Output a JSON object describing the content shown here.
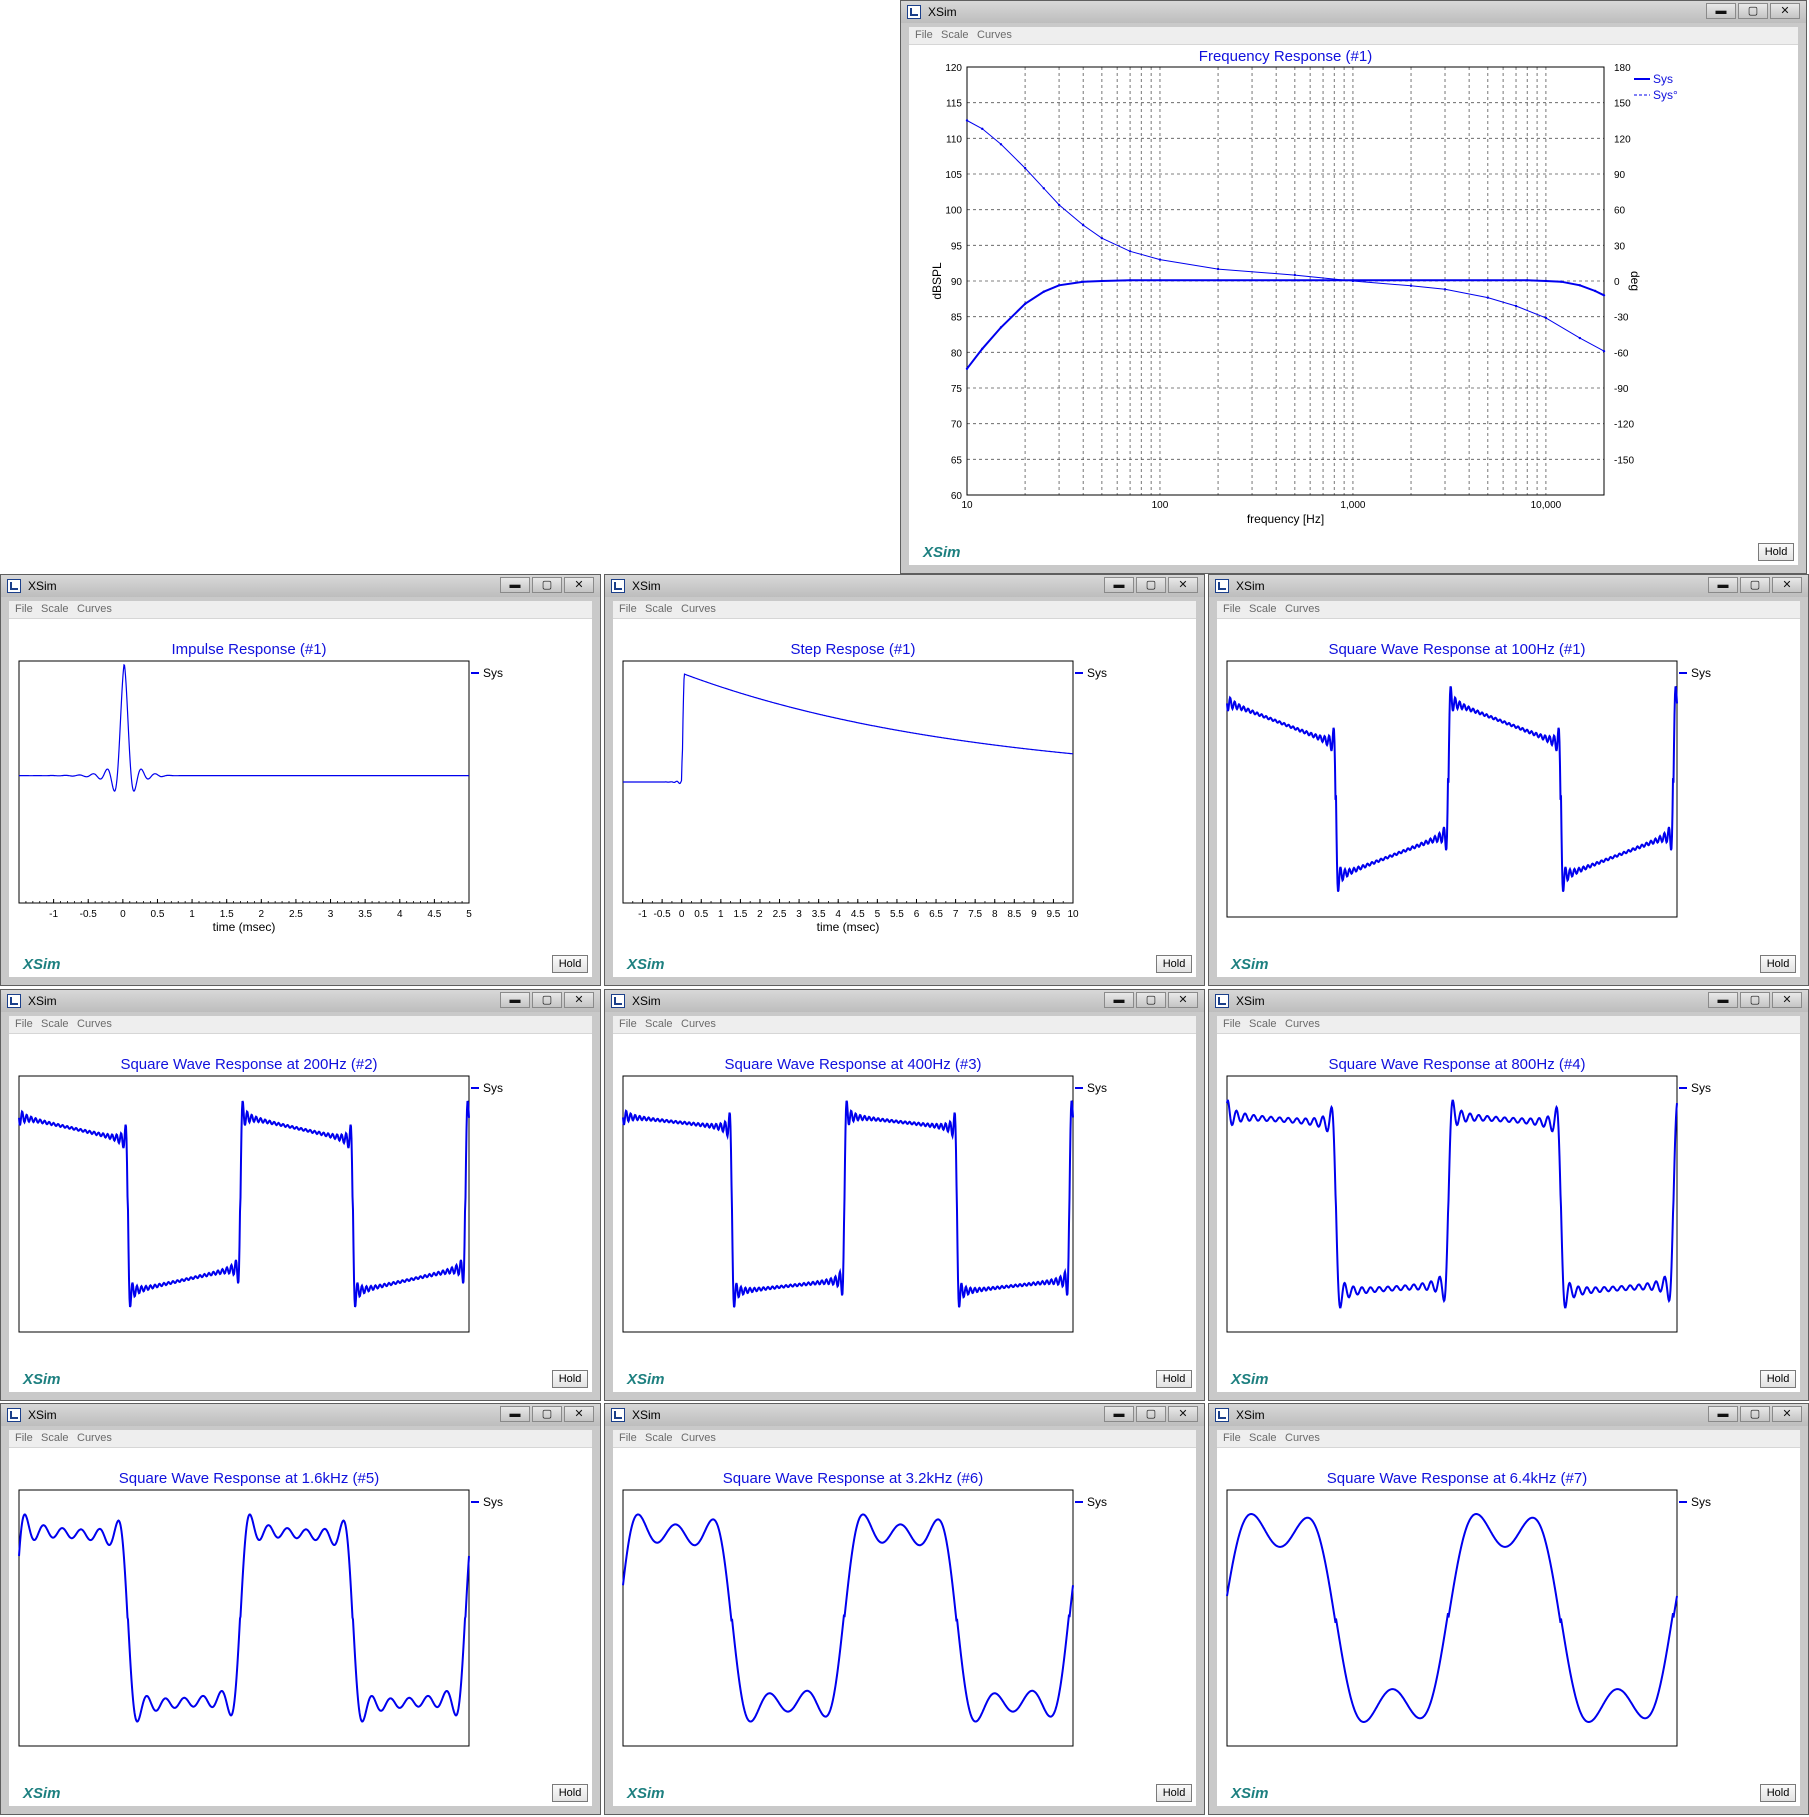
{
  "app_title": "XSim",
  "menu": [
    "File",
    "Scale",
    "Curves"
  ],
  "hold_label": "Hold",
  "brand_label": "XSim",
  "window_buttons": {
    "minimize": "▬",
    "maximize": "▢",
    "close": "✕"
  },
  "colors": {
    "curve": "#0000ee",
    "title": "#1010dd",
    "brand": "#1e8080",
    "grid": "#555555"
  },
  "freq_window": {
    "chart_data": {
      "type": "line",
      "title": "Frequency Response (#1)",
      "xlabel": "frequency [Hz]",
      "ylabel": "dBSPL",
      "y2label": "deg",
      "x_scale": "log",
      "xlim": [
        10,
        20000
      ],
      "ylim": [
        60,
        120
      ],
      "y2lim": [
        -180,
        180
      ],
      "x_tick_labels": [
        {
          "value": 10,
          "label": "10"
        },
        {
          "value": 100,
          "label": "100"
        },
        {
          "value": 1000,
          "label": "1,000"
        },
        {
          "value": 10000,
          "label": "10,000"
        }
      ],
      "y_ticks": [
        60,
        65,
        70,
        75,
        80,
        85,
        90,
        95,
        100,
        105,
        110,
        115,
        120
      ],
      "y2_ticks": [
        -150,
        -120,
        -90,
        -60,
        -30,
        0,
        30,
        60,
        90,
        120,
        150,
        180
      ],
      "grid": true,
      "legend_position": "top-right",
      "series": [
        {
          "name": "Sys",
          "axis": "left",
          "style": "solid",
          "x": [
            10,
            12,
            15,
            20,
            25,
            30,
            40,
            50,
            70,
            100,
            200,
            500,
            1000,
            2000,
            5000,
            8000,
            10000,
            12000,
            15000,
            18000,
            20000
          ],
          "y": [
            77.7,
            80.5,
            83.5,
            86.8,
            88.5,
            89.4,
            89.9,
            90.0,
            90.1,
            90.1,
            90.1,
            90.1,
            90.1,
            90.1,
            90.1,
            90.1,
            90.0,
            89.9,
            89.4,
            88.6,
            88.0
          ]
        },
        {
          "name": "Sys°",
          "axis": "right",
          "style": "dashed",
          "x": [
            10,
            12,
            15,
            20,
            25,
            30,
            40,
            50,
            70,
            100,
            200,
            500,
            1000,
            2000,
            3000,
            5000,
            7000,
            10000,
            15000,
            20000
          ],
          "y": [
            135,
            128,
            115,
            95,
            78,
            64,
            47,
            36,
            25,
            18,
            10,
            5,
            0,
            -4,
            -7,
            -14,
            -21,
            -31,
            -48,
            -59
          ]
        }
      ]
    }
  },
  "impulse_window": {
    "chart_data": {
      "type": "line",
      "title": "Impulse Response (#1)",
      "xlabel": "time (msec)",
      "xlim": [
        -1.5,
        5
      ],
      "x_ticks": [
        -1,
        -0.5,
        0,
        0.5,
        1,
        1.5,
        2,
        2.5,
        3,
        3.5,
        4,
        4.5,
        5
      ],
      "ylim": [
        -1.0,
        0.9
      ],
      "legend_position": "top-right",
      "series": [
        {
          "name": "Sys"
        }
      ]
    }
  },
  "step_window": {
    "chart_data": {
      "type": "line",
      "title": "Step Respose (#1)",
      "xlabel": "time (msec)",
      "xlim": [
        -1.5,
        10
      ],
      "x_ticks": [
        -1,
        -0.5,
        0,
        0.5,
        1,
        1.5,
        2,
        2.5,
        3,
        3.5,
        4,
        4.5,
        5,
        5.5,
        6,
        6.5,
        7,
        7.5,
        8,
        8.5,
        9,
        9.5,
        10
      ],
      "ylim": [
        -1.0,
        1.0
      ],
      "legend_position": "top-right",
      "series": [
        {
          "name": "Sys"
        }
      ]
    }
  },
  "square_windows": [
    {
      "chart_data": {
        "type": "line",
        "title": "Square Wave Response at 100Hz (#1)",
        "frequency_hz": 100,
        "cycles_shown": 2,
        "legend_position": "top-right",
        "series": [
          {
            "name": "Sys"
          }
        ]
      }
    },
    {
      "chart_data": {
        "type": "line",
        "title": "Square Wave Response at 200Hz (#2)",
        "frequency_hz": 200,
        "cycles_shown": 2,
        "legend_position": "top-right",
        "series": [
          {
            "name": "Sys"
          }
        ]
      }
    },
    {
      "chart_data": {
        "type": "line",
        "title": "Square Wave Response at 400Hz (#3)",
        "frequency_hz": 400,
        "cycles_shown": 2,
        "legend_position": "top-right",
        "series": [
          {
            "name": "Sys"
          }
        ]
      }
    },
    {
      "chart_data": {
        "type": "line",
        "title": "Square Wave Response at 800Hz (#4)",
        "frequency_hz": 800,
        "cycles_shown": 2,
        "legend_position": "top-right",
        "series": [
          {
            "name": "Sys"
          }
        ]
      }
    },
    {
      "chart_data": {
        "type": "line",
        "title": "Square Wave Response at 1.6kHz (#5)",
        "frequency_hz": 1600,
        "cycles_shown": 2,
        "legend_position": "top-right",
        "series": [
          {
            "name": "Sys"
          }
        ]
      }
    },
    {
      "chart_data": {
        "type": "line",
        "title": "Square Wave Response at 3.2kHz (#6)",
        "frequency_hz": 3200,
        "cycles_shown": 2,
        "legend_position": "top-right",
        "series": [
          {
            "name": "Sys"
          }
        ]
      }
    },
    {
      "chart_data": {
        "type": "line",
        "title": "Square Wave Response at 6.4kHz (#7)",
        "frequency_hz": 6400,
        "cycles_shown": 2,
        "legend_position": "top-right",
        "series": [
          {
            "name": "Sys"
          }
        ]
      }
    }
  ]
}
